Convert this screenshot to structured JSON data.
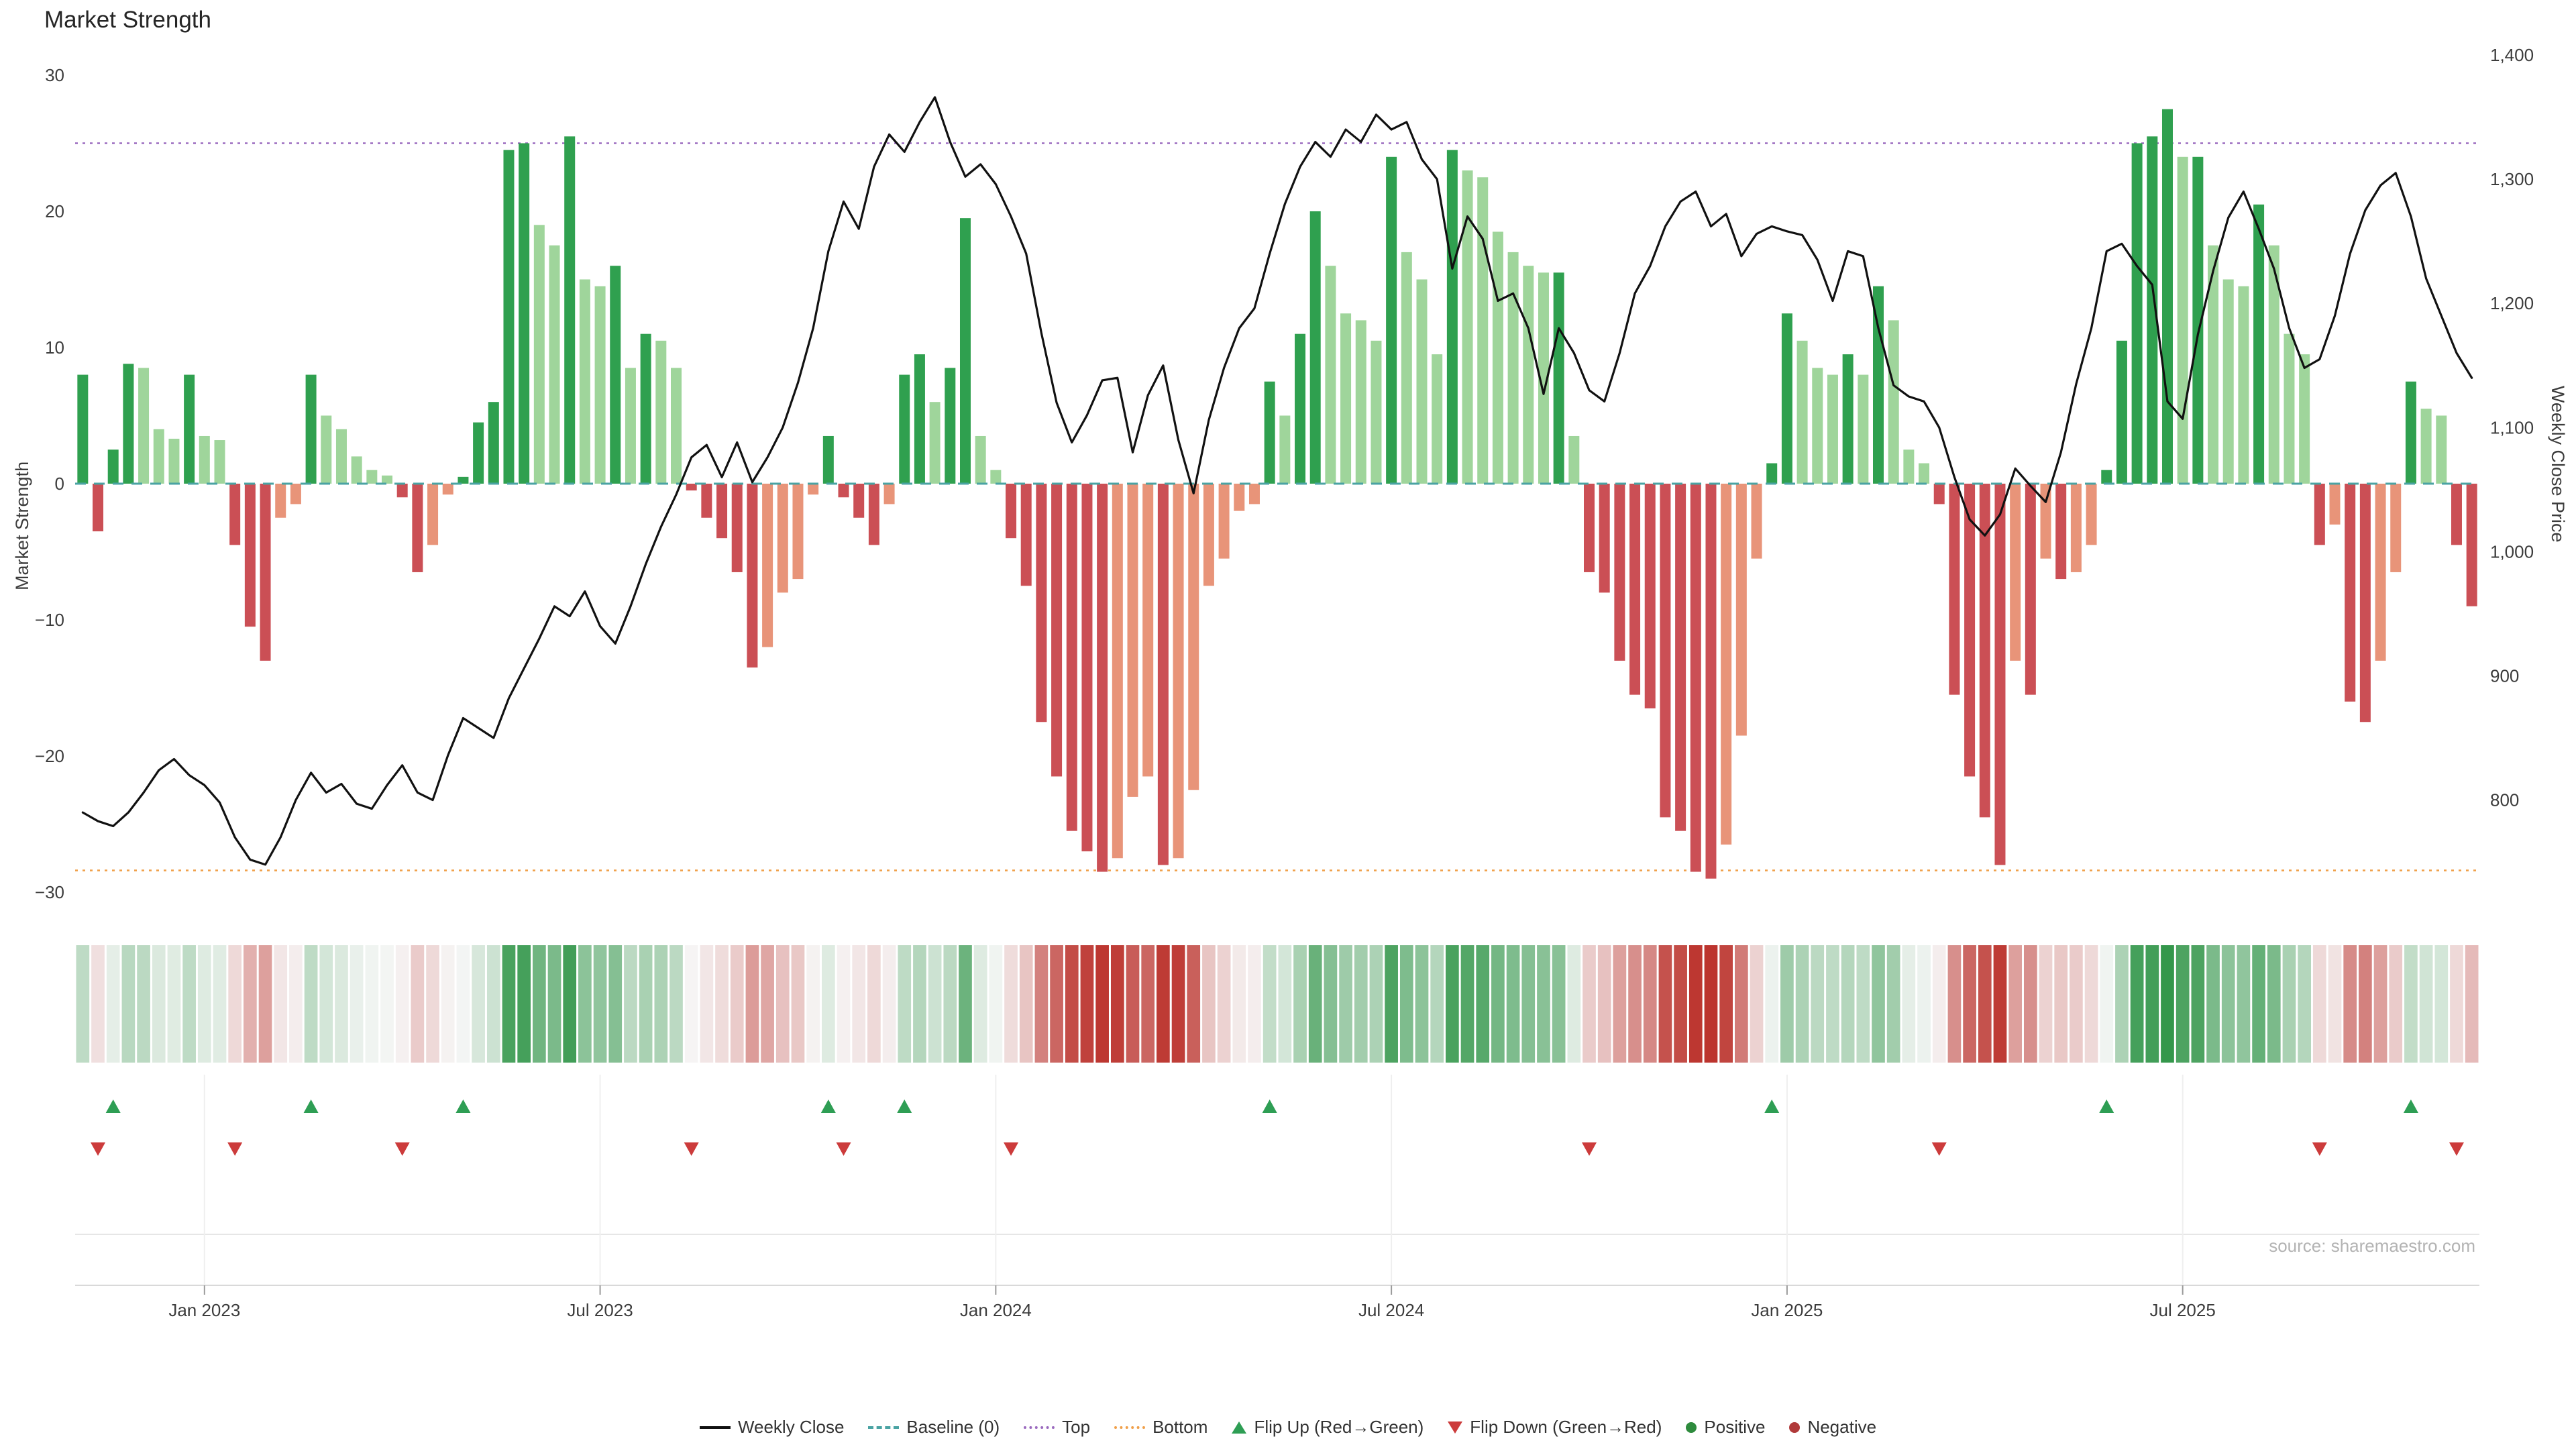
{
  "title": "Market Strength",
  "source": "source: sharemaestro.com",
  "y_left_label": "Market Strength",
  "y_right_label": "Weekly Close Price",
  "legend": {
    "items": [
      {
        "label": "Weekly Close"
      },
      {
        "label": "Baseline (0)"
      },
      {
        "label": "Top"
      },
      {
        "label": "Bottom"
      },
      {
        "label": "Flip Up (Red→Green)"
      },
      {
        "label": "Flip Down (Green→Red)"
      },
      {
        "label": "Positive"
      },
      {
        "label": "Negative"
      }
    ]
  },
  "chart_data": {
    "type": "combo bar+line",
    "x_unit": "week",
    "x_tick_labels": [
      "Jan 2023",
      "Jul 2023",
      "Jan 2024",
      "Jul 2024",
      "Jan 2025",
      "Jul 2025"
    ],
    "x_tick_indices": [
      8,
      34,
      60,
      86,
      112,
      138
    ],
    "left_axis": {
      "label": "Market Strength",
      "ticks": [
        {
          "label": "30",
          "value": 30
        },
        {
          "label": "20",
          "value": 20
        },
        {
          "label": "10",
          "value": 10
        },
        {
          "label": "0",
          "value": 0
        },
        {
          "label": "−10",
          "value": -10
        },
        {
          "label": "−20",
          "value": -20
        },
        {
          "label": "−30",
          "value": -30
        }
      ]
    },
    "right_axis": {
      "label": "Weekly Close Price",
      "ticks": [
        {
          "label": "1,400",
          "value": 1400
        },
        {
          "label": "1,300",
          "value": 1300
        },
        {
          "label": "1,200",
          "value": 1200
        },
        {
          "label": "1,100",
          "value": 1100
        },
        {
          "label": "1,000",
          "value": 1000
        },
        {
          "label": "900",
          "value": 900
        },
        {
          "label": "800",
          "value": 800
        }
      ]
    },
    "baseline_value": 0,
    "top_value": 25,
    "bottom_value": -28.4,
    "strength_bars": [
      8,
      -3.5,
      2.5,
      8.8,
      8.5,
      4,
      3.3,
      8,
      3.5,
      3.2,
      -4.5,
      -10.5,
      -13,
      -2.5,
      -1.5,
      8,
      5,
      4,
      2,
      1,
      0.6,
      -1,
      -6.5,
      -4.5,
      -0.8,
      0.5,
      4.5,
      6,
      24.5,
      25,
      19,
      17.5,
      25.5,
      15,
      14.5,
      16,
      8.5,
      11,
      10.5,
      8.5,
      -0.5,
      -2.5,
      -4,
      -6.5,
      -13.5,
      -12,
      -8,
      -7,
      -0.8,
      3.5,
      -1,
      -2.5,
      -4.5,
      -1.5,
      8,
      9.5,
      6,
      8.5,
      19.5,
      3.5,
      1,
      -4,
      -7.5,
      -17.5,
      -21.5,
      -25.5,
      -27,
      -28.5,
      -27.5,
      -23,
      -21.5,
      -28,
      -27.5,
      -22.5,
      -7.5,
      -5.5,
      -2,
      -1.5,
      7.5,
      5,
      11,
      20,
      16,
      12.5,
      12,
      10.5,
      24,
      17,
      15,
      9.5,
      24.5,
      23,
      22.5,
      18.5,
      17,
      16,
      15.5,
      15.5,
      3.5,
      -6.5,
      -8,
      -13,
      -15.5,
      -16.5,
      -24.5,
      -25.5,
      -28.5,
      -29,
      -26.5,
      -18.5,
      -5.5,
      1.5,
      12.5,
      10.5,
      8.5,
      8,
      9.5,
      8,
      14.5,
      12,
      2.5,
      1.5,
      -1.5,
      -15.5,
      -21.5,
      -24.5,
      -28,
      -13,
      -15.5,
      -5.5,
      -7,
      -6.5,
      -4.5,
      1,
      10.5,
      25,
      25.5,
      27.5,
      24,
      24,
      17.5,
      15,
      14.5,
      20.5,
      17.5,
      11,
      9.5,
      -4.5,
      -3,
      -16,
      -17.5,
      -13,
      -6.5,
      7.5,
      5.5,
      5,
      -4.5,
      -9
    ],
    "weekly_close": [
      790,
      783,
      779,
      790,
      806,
      824,
      833,
      820,
      812,
      798,
      770,
      752,
      748,
      770,
      800,
      822,
      806,
      813,
      797,
      793,
      812,
      828,
      806,
      800,
      836,
      866,
      858,
      850,
      882,
      906,
      930,
      956,
      948,
      968,
      940,
      926,
      956,
      990,
      1020,
      1046,
      1076,
      1086,
      1060,
      1088,
      1056,
      1076,
      1100,
      1136,
      1180,
      1242,
      1282,
      1260,
      1310,
      1336,
      1322,
      1346,
      1366,
      1330,
      1302,
      1312,
      1296,
      1270,
      1240,
      1176,
      1120,
      1088,
      1110,
      1138,
      1140,
      1080,
      1126,
      1150,
      1090,
      1047,
      1106,
      1148,
      1180,
      1196,
      1240,
      1280,
      1310,
      1330,
      1318,
      1340,
      1330,
      1352,
      1340,
      1346,
      1316,
      1300,
      1228,
      1270,
      1252,
      1202,
      1208,
      1180,
      1127,
      1180,
      1160,
      1130,
      1121,
      1160,
      1208,
      1230,
      1262,
      1282,
      1290,
      1262,
      1272,
      1238,
      1256,
      1262,
      1258,
      1255,
      1235,
      1202,
      1242,
      1238,
      1180,
      1134,
      1125,
      1121,
      1100,
      1060,
      1026,
      1013,
      1030,
      1067,
      1053,
      1040,
      1080,
      1135,
      1180,
      1242,
      1248,
      1230,
      1215,
      1121,
      1107,
      1175,
      1226,
      1269,
      1290,
      1260,
      1228,
      1180,
      1148,
      1155,
      1190,
      1240,
      1275,
      1295,
      1305,
      1270,
      1220,
      1190,
      1160,
      1140
    ],
    "flip_up_indices": [
      2,
      15,
      25,
      49,
      54,
      78,
      111,
      133,
      153
    ],
    "flip_down_indices": [
      1,
      10,
      21,
      40,
      50,
      61,
      99,
      122,
      147,
      156
    ],
    "colors": {
      "positive_dark": "#2fa04f",
      "positive_light": "#9fd59b",
      "negative_dark": "#cb4f55",
      "negative_light": "#e89479",
      "line": "#111111",
      "baseline": "#4aa3a3",
      "top": "#9b6bbf",
      "bottom": "#f0a04a",
      "flip_up": "#2e9e54",
      "flip_down": "#cc3b3b"
    }
  }
}
